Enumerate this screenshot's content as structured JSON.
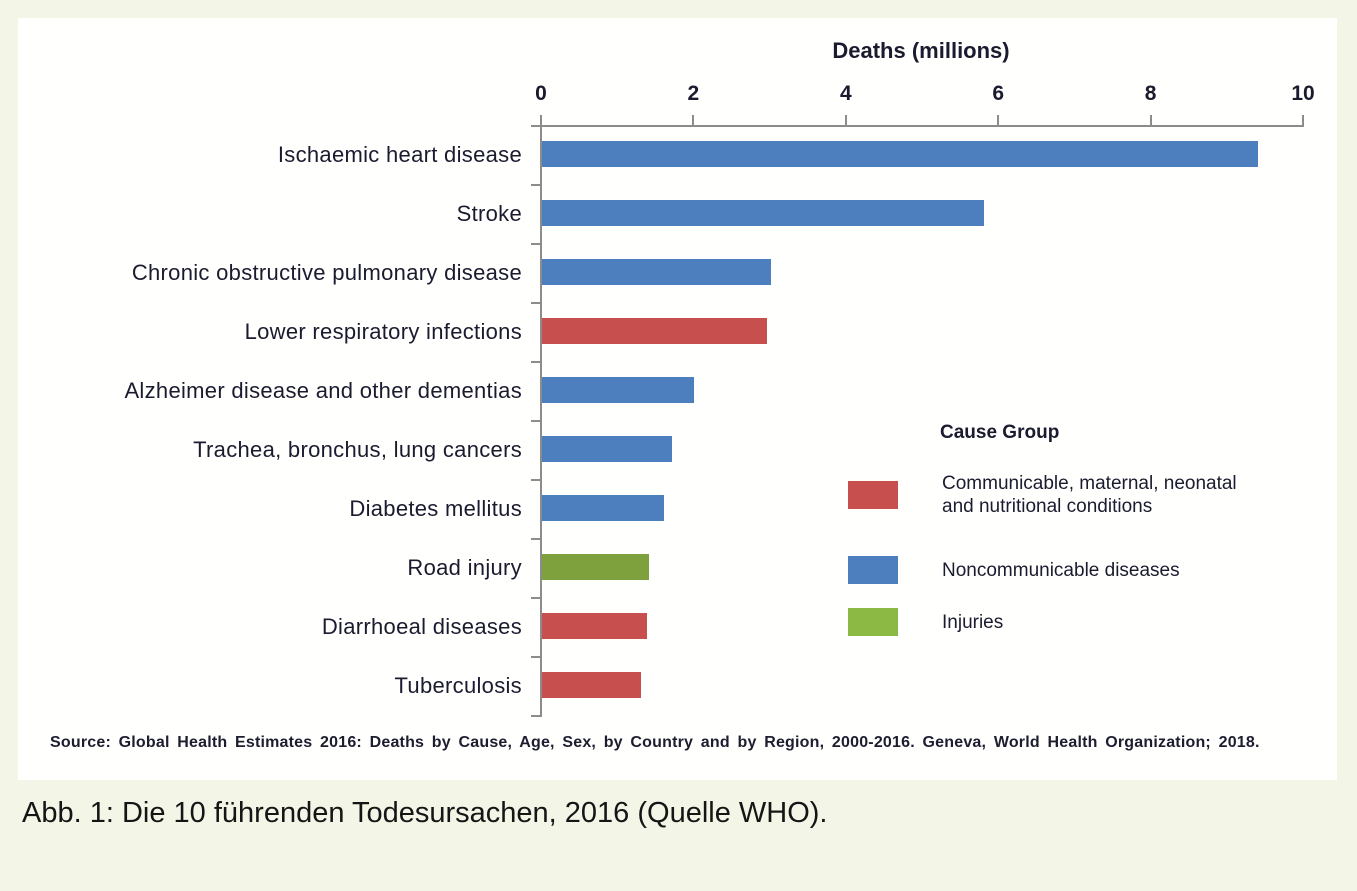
{
  "figure": {
    "caption": "Abb. 1: Die 10 führenden Todesursachen, 2016 (Quelle WHO).",
    "source": "Source: Global Health Estimates 2016: Deaths by Cause, Age, Sex, by Country and by Region, 2000-2016. Geneva, World Health Organization; 2018."
  },
  "chart_data": {
    "type": "bar",
    "orientation": "horizontal",
    "title": "Deaths (millions)",
    "xlabel": "Deaths (millions)",
    "ylabel": "",
    "xlim": [
      0,
      10
    ],
    "xticks": [
      0,
      2,
      4,
      6,
      8,
      10
    ],
    "grid": false,
    "axis_color": "#8c8c8c",
    "categories": [
      "Ischaemic heart disease",
      "Stroke",
      "Chronic obstructive pulmonary disease",
      "Lower respiratory infections",
      "Alzheimer disease and other dementias",
      "Trachea, bronchus, lung cancers",
      "Diabetes mellitus",
      "Road injury",
      "Diarrhoeal diseases",
      "Tuberculosis"
    ],
    "values": [
      9.4,
      5.8,
      3.0,
      2.95,
      2.0,
      1.7,
      1.6,
      1.4,
      1.38,
      1.3
    ],
    "groups": [
      "noncommunicable",
      "noncommunicable",
      "noncommunicable",
      "communicable",
      "noncommunicable",
      "noncommunicable",
      "noncommunicable",
      "injuries",
      "communicable",
      "communicable"
    ],
    "colors": {
      "communicable": "#c7504f",
      "noncommunicable": "#4d7ebe",
      "injuries": "#7ea13d"
    },
    "legend_position": "right-middle",
    "legend": {
      "title": "Cause Group",
      "entries": [
        {
          "label": "Communicable, maternal, neonatal and nutritional conditions",
          "color": "#c7504f",
          "group": "communicable"
        },
        {
          "label": "Noncommunicable diseases",
          "color": "#4d7ebe",
          "group": "noncommunicable"
        },
        {
          "label": "Injuries",
          "color": "#8cb943",
          "group": "injuries"
        }
      ]
    }
  }
}
